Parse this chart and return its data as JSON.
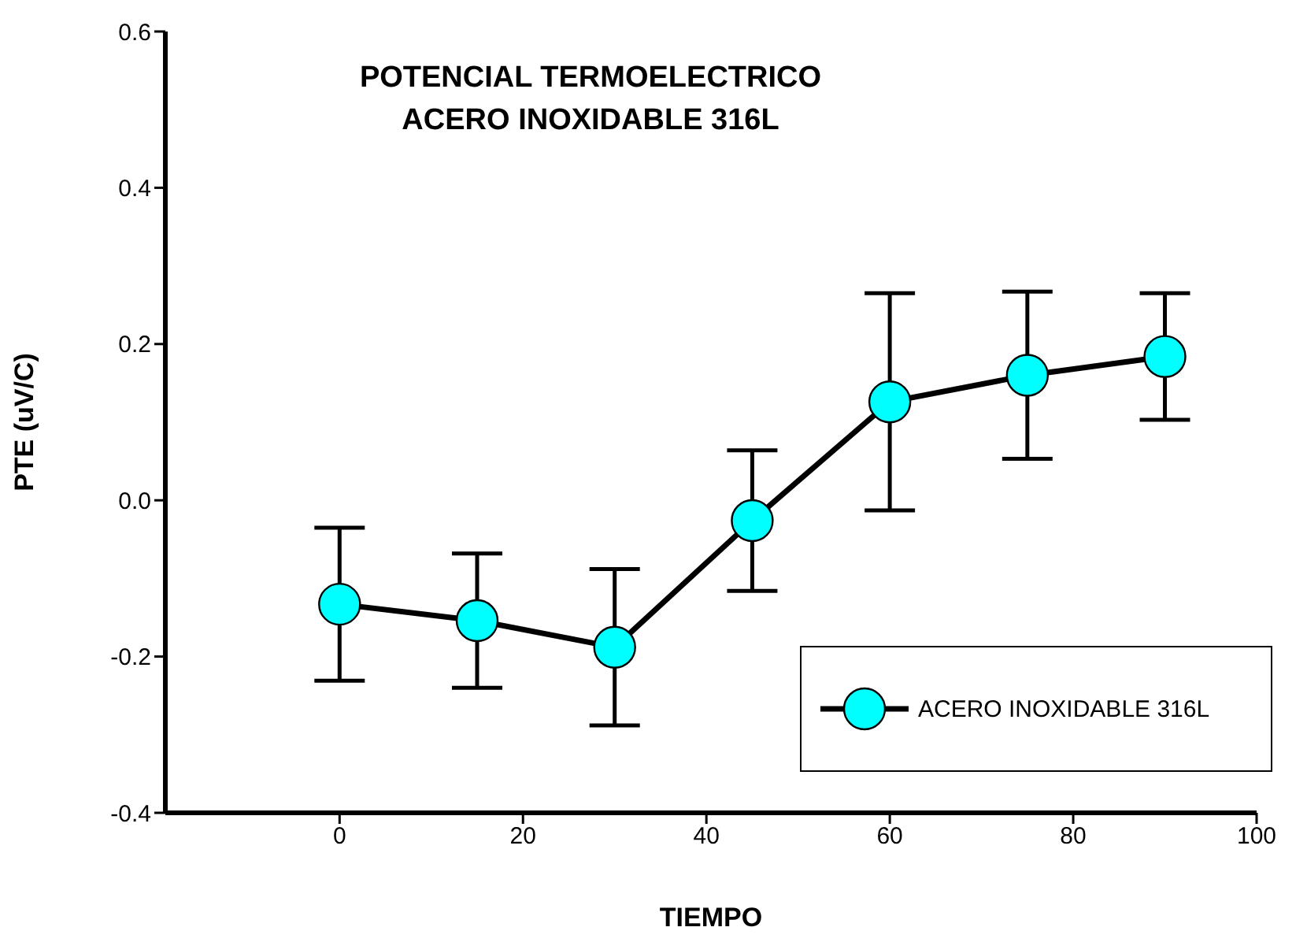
{
  "chart_data": {
    "type": "line",
    "title": "POTENCIAL TERMOELECTRICO\nACERO INOXIDABLE 316L",
    "xlabel": "TIEMPO",
    "ylabel": "PTE (uV/C)",
    "x": [
      0,
      15,
      30,
      45,
      60,
      75,
      90
    ],
    "series": [
      {
        "name": "ACERO INOXIDABLE 316L",
        "color": "#00ffff",
        "values": [
          -0.133,
          -0.154,
          -0.188,
          -0.026,
          0.126,
          0.16,
          0.184
        ],
        "errors": [
          0.098,
          0.086,
          0.1,
          0.09,
          0.139,
          0.107,
          0.081
        ]
      }
    ],
    "xlim": [
      -19,
      100
    ],
    "xticks": [
      0,
      20,
      40,
      60,
      80,
      100
    ],
    "ylim": [
      -0.4,
      0.6
    ],
    "yticks": [
      {
        "value": -0.4,
        "label": "-0.4"
      },
      {
        "value": -0.2,
        "label": "-0.2"
      },
      {
        "value": 0,
        "label": "0.0"
      },
      {
        "value": 0.2,
        "label": "0.2"
      },
      {
        "value": 0.4,
        "label": "0.4"
      },
      {
        "value": 0.6,
        "label": "0.6"
      }
    ],
    "grid": false,
    "legend": "bottom right",
    "marker": "circle",
    "line_style": "solid"
  }
}
